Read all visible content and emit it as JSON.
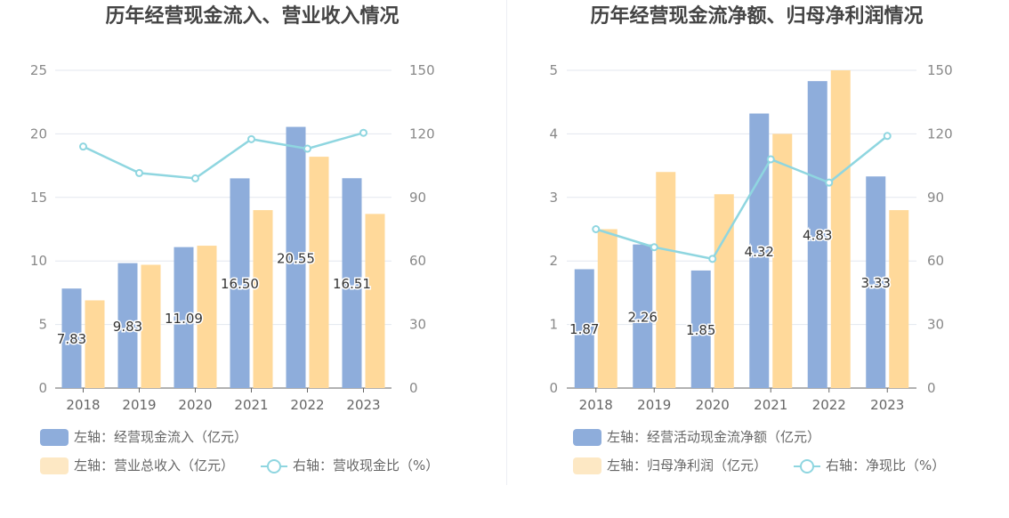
{
  "colors": {
    "bar_primary": "#8eaddb",
    "bar_secondary": "#ffd99a",
    "line": "#8fd6e0",
    "legend_secondary_swatch": "#fde8c4"
  },
  "chart_data": [
    {
      "type": "bar",
      "title": "历年经营现金流入、营业收入情况",
      "categories": [
        "2018",
        "2019",
        "2020",
        "2021",
        "2022",
        "2023"
      ],
      "left_axis": {
        "ylim": [
          0,
          25
        ],
        "ticks": [
          "0",
          "5",
          "10",
          "15",
          "20",
          "25"
        ]
      },
      "right_axis": {
        "ylim": [
          0,
          150
        ],
        "ticks": [
          "0",
          "30",
          "60",
          "90",
          "120",
          "150"
        ]
      },
      "series": [
        {
          "name": "左轴：经营现金流入（亿元）",
          "kind": "bar",
          "axis": "left",
          "values": [
            7.83,
            9.83,
            11.09,
            16.5,
            20.55,
            16.51
          ],
          "labels": [
            "7.83",
            "9.83",
            "11.09",
            "16.50",
            "20.55",
            "16.51"
          ]
        },
        {
          "name": "左轴：营业总收入（亿元）",
          "kind": "bar",
          "axis": "left",
          "values": [
            6.9,
            9.7,
            11.2,
            14.0,
            18.2,
            13.7
          ]
        },
        {
          "name": "右轴：营收现金比（%）",
          "kind": "line",
          "axis": "right",
          "values": [
            114,
            101.5,
            99,
            117.5,
            113,
            120.5
          ]
        }
      ]
    },
    {
      "type": "bar",
      "title": "历年经营现金流净额、归母净利润情况",
      "categories": [
        "2018",
        "2019",
        "2020",
        "2021",
        "2022",
        "2023"
      ],
      "left_axis": {
        "ylim": [
          0,
          5
        ],
        "ticks": [
          "0",
          "1",
          "2",
          "3",
          "4",
          "5"
        ]
      },
      "right_axis": {
        "ylim": [
          0,
          150
        ],
        "ticks": [
          "0",
          "30",
          "60",
          "90",
          "120",
          "150"
        ]
      },
      "series": [
        {
          "name": "左轴：经营活动现金流净额（亿元）",
          "kind": "bar",
          "axis": "left",
          "values": [
            1.87,
            2.26,
            1.85,
            4.32,
            4.83,
            3.33
          ],
          "labels": [
            "1.87",
            "2.26",
            "1.85",
            "4.32",
            "4.83",
            "3.33"
          ]
        },
        {
          "name": "左轴：归母净利润（亿元）",
          "kind": "bar",
          "axis": "left",
          "values": [
            2.5,
            3.4,
            3.05,
            4.0,
            5.0,
            2.8
          ]
        },
        {
          "name": "右轴：净现比（%）",
          "kind": "line",
          "axis": "right",
          "values": [
            75,
            66.5,
            61,
            108,
            97,
            119
          ]
        }
      ]
    }
  ]
}
